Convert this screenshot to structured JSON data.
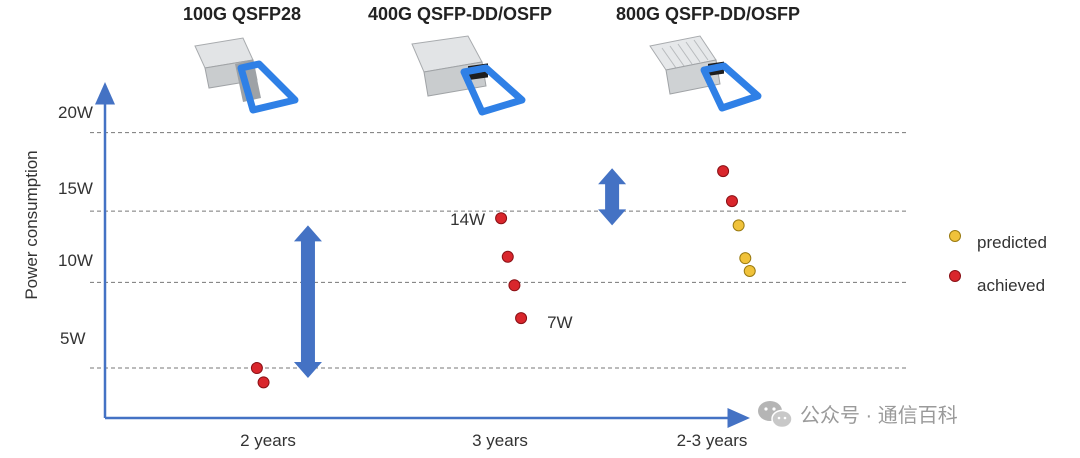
{
  "chart_data": {
    "type": "scatter",
    "ylabel": "Power consumption",
    "yticks": [
      "5W",
      "10W",
      "15W",
      "20W"
    ],
    "ylim": [
      0,
      24
    ],
    "grid_y": [
      3.5,
      9.5,
      14.5,
      20
    ],
    "categories": [
      "2 years",
      "3 years",
      "2-3 years"
    ],
    "products": [
      "100G QSFP28",
      "400G QSFP-DD/OSFP",
      "800G QSFP-DD/OSFP"
    ],
    "series": [
      {
        "name": "achieved",
        "color": "#d9262c",
        "points": [
          {
            "x": 0.95,
            "y": 3.5
          },
          {
            "x": 0.98,
            "y": 2.5
          },
          {
            "x": 2.05,
            "y": 14
          },
          {
            "x": 2.08,
            "y": 11.3
          },
          {
            "x": 2.11,
            "y": 9.3
          },
          {
            "x": 2.14,
            "y": 7
          },
          {
            "x": 3.05,
            "y": 17.3
          },
          {
            "x": 3.09,
            "y": 15.2
          }
        ]
      },
      {
        "name": "predicted",
        "color": "#f0c23a",
        "points": [
          {
            "x": 3.12,
            "y": 13.5
          },
          {
            "x": 3.15,
            "y": 11.2
          },
          {
            "x": 3.17,
            "y": 10.3
          }
        ]
      }
    ],
    "annotations": [
      {
        "text": "14W",
        "x": 2.05,
        "y": 14
      },
      {
        "text": "7W",
        "x": 2.14,
        "y": 7
      }
    ],
    "ranges": [
      {
        "x": 1.18,
        "y_low": 2.8,
        "y_high": 13.5
      },
      {
        "x": 2.55,
        "y_low": 13.5,
        "y_high": 17.5
      }
    ],
    "legend": {
      "placement": "right"
    },
    "icons": [
      "qsfp28-module-icon",
      "qsfp-dd-400g-module-icon",
      "qsfp-dd-800g-module-icon"
    ]
  },
  "watermark": "公众号 · 通信百科"
}
